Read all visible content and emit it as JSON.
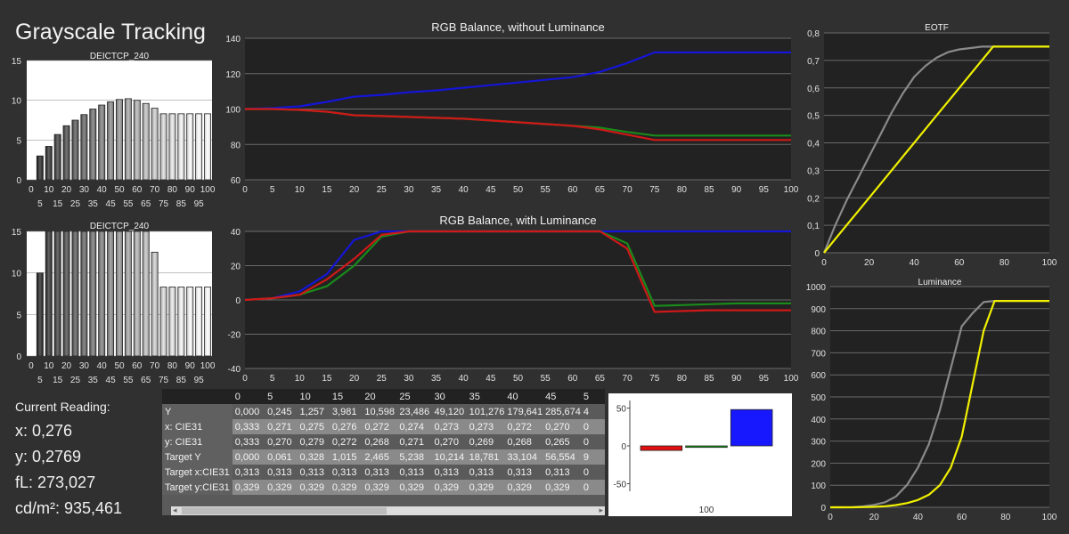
{
  "page": {
    "title": "Grayscale Tracking"
  },
  "reading": {
    "header": "Current Reading:",
    "x": "x: 0,276",
    "y": "y: 0,2769",
    "fl": "fL: 273,027",
    "cdm2": "cd/m²: 935,461"
  },
  "table": {
    "columns": [
      "0",
      "5",
      "10",
      "15",
      "20",
      "25",
      "30",
      "35",
      "40",
      "45",
      "5"
    ],
    "rows": [
      {
        "label": "Y",
        "values": [
          "0,000",
          "0,245",
          "1,257",
          "3,981",
          "10,598",
          "23,486",
          "49,120",
          "101,276",
          "179,641",
          "285,674",
          "4"
        ]
      },
      {
        "label": "x: CIE31",
        "values": [
          "0,333",
          "0,271",
          "0,275",
          "0,276",
          "0,272",
          "0,274",
          "0,273",
          "0,273",
          "0,272",
          "0,270",
          "0"
        ]
      },
      {
        "label": "y: CIE31",
        "values": [
          "0,333",
          "0,270",
          "0,279",
          "0,272",
          "0,268",
          "0,271",
          "0,270",
          "0,269",
          "0,268",
          "0,265",
          "0"
        ]
      },
      {
        "label": "Target Y",
        "values": [
          "0,000",
          "0,061",
          "0,328",
          "1,015",
          "2,465",
          "5,238",
          "10,214",
          "18,781",
          "33,104",
          "56,554",
          "9"
        ]
      },
      {
        "label": "Target x:CIE31",
        "values": [
          "0,313",
          "0,313",
          "0,313",
          "0,313",
          "0,313",
          "0,313",
          "0,313",
          "0,313",
          "0,313",
          "0,313",
          "0"
        ]
      },
      {
        "label": "Target y:CIE31",
        "values": [
          "0,329",
          "0,329",
          "0,329",
          "0,329",
          "0,329",
          "0,329",
          "0,329",
          "0,329",
          "0,329",
          "0,329",
          "0"
        ]
      }
    ]
  },
  "chart_data": [
    {
      "id": "deictcp-top",
      "type": "bar",
      "title": "DEICTCP_240",
      "categories": [
        0,
        5,
        10,
        15,
        20,
        25,
        30,
        35,
        40,
        45,
        50,
        55,
        60,
        65,
        70,
        75,
        80,
        85,
        90,
        95,
        100
      ],
      "tick_row1": [
        "0",
        "10",
        "20",
        "30",
        "40",
        "50",
        "60",
        "70",
        "80",
        "90",
        "100"
      ],
      "tick_row2": [
        "5",
        "15",
        "25",
        "35",
        "45",
        "55",
        "65",
        "75",
        "85",
        "95"
      ],
      "values": [
        0,
        3,
        4.2,
        5.7,
        6.8,
        7.5,
        8.2,
        8.9,
        9.4,
        9.8,
        10.1,
        10.2,
        10,
        9.6,
        9,
        8.3,
        8.3,
        8.3,
        8.3,
        8.3,
        8.3
      ],
      "ylim": [
        0,
        15
      ],
      "yticks": [
        0,
        5,
        10,
        15
      ]
    },
    {
      "id": "rgb-balance-without",
      "type": "line",
      "title": "RGB Balance, without Luminance",
      "x": [
        0,
        5,
        10,
        15,
        20,
        25,
        30,
        35,
        40,
        45,
        50,
        55,
        60,
        65,
        70,
        75,
        80,
        85,
        90,
        95,
        100
      ],
      "xlim": [
        0,
        100
      ],
      "ylim": [
        60,
        140
      ],
      "yticks": [
        60,
        80,
        100,
        120,
        140
      ],
      "series": [
        {
          "color": "#1515d8",
          "values": [
            100,
            100.5,
            101.5,
            104,
            107,
            108,
            109.5,
            110.5,
            112,
            113.5,
            115,
            116.5,
            118,
            121,
            126,
            132,
            132,
            132,
            132,
            132,
            132
          ]
        },
        {
          "color": "#1a8a1a",
          "values": [
            100,
            100,
            99.5,
            98.5,
            96.5,
            96,
            95.5,
            95,
            94.5,
            93.5,
            92.5,
            91.5,
            90.5,
            89.5,
            87,
            85,
            85,
            85,
            85,
            85,
            85
          ]
        },
        {
          "color": "#d01818",
          "values": [
            100,
            100,
            99.5,
            98.5,
            96.5,
            96,
            95.5,
            95,
            94.5,
            93.5,
            92.5,
            91.5,
            90.5,
            88.5,
            85.5,
            82.5,
            82.5,
            82.5,
            82.5,
            82.5,
            82.5
          ]
        }
      ]
    },
    {
      "id": "eotf",
      "type": "line",
      "title": "EOTF",
      "x": [
        0,
        5,
        10,
        15,
        20,
        25,
        30,
        35,
        40,
        45,
        50,
        55,
        60,
        65,
        70,
        75,
        80,
        85,
        90,
        95,
        100
      ],
      "xlim": [
        0,
        100
      ],
      "ylim": [
        0,
        0.8
      ],
      "yticks": [
        "0",
        "0,1",
        "0,2",
        "0,3",
        "0,4",
        "0,5",
        "0,6",
        "0,7",
        "0,8"
      ],
      "xticks": [
        0,
        20,
        40,
        60,
        80,
        100
      ],
      "series": [
        {
          "color": "#8a8a8a",
          "values": [
            0,
            0.1,
            0.19,
            0.27,
            0.35,
            0.43,
            0.51,
            0.58,
            0.64,
            0.68,
            0.71,
            0.73,
            0.74,
            0.745,
            0.75,
            0.75,
            0.75,
            0.75,
            0.75,
            0.75,
            0.75
          ]
        },
        {
          "color": "#f0f000",
          "values": [
            0,
            0.05,
            0.1,
            0.15,
            0.2,
            0.25,
            0.3,
            0.35,
            0.4,
            0.45,
            0.5,
            0.55,
            0.6,
            0.65,
            0.7,
            0.75,
            0.75,
            0.75,
            0.75,
            0.75,
            0.75
          ]
        }
      ]
    },
    {
      "id": "deictcp-bottom",
      "type": "bar",
      "title": "DEICTCP_240",
      "categories": [
        0,
        5,
        10,
        15,
        20,
        25,
        30,
        35,
        40,
        45,
        50,
        55,
        60,
        65,
        70,
        75,
        80,
        85,
        90,
        95,
        100
      ],
      "tick_row1": [
        "0",
        "10",
        "20",
        "30",
        "40",
        "50",
        "60",
        "70",
        "80",
        "90",
        "100"
      ],
      "tick_row2": [
        "5",
        "15",
        "25",
        "35",
        "45",
        "55",
        "65",
        "75",
        "85",
        "95"
      ],
      "values": [
        0,
        10,
        15,
        15,
        15,
        15,
        15,
        15,
        15,
        15,
        15,
        15,
        15,
        15,
        12.5,
        8.3,
        8.3,
        8.3,
        8.3,
        8.3,
        8.3
      ],
      "ylim": [
        0,
        15
      ],
      "yticks": [
        0,
        5,
        10,
        15
      ]
    },
    {
      "id": "rgb-balance-with",
      "type": "line",
      "title": "RGB Balance, with Luminance",
      "x": [
        0,
        5,
        10,
        15,
        20,
        25,
        30,
        35,
        40,
        45,
        50,
        55,
        60,
        65,
        70,
        75,
        80,
        85,
        90,
        95,
        100
      ],
      "xlim": [
        0,
        100
      ],
      "ylim": [
        -40,
        40
      ],
      "yticks": [
        -40,
        -20,
        0,
        20,
        40
      ],
      "series": [
        {
          "color": "#1515d8",
          "values": [
            0,
            1,
            5,
            15,
            35,
            40,
            40,
            40,
            40,
            40,
            40,
            40,
            40,
            40,
            40,
            40,
            40,
            40,
            40,
            40,
            40
          ]
        },
        {
          "color": "#1a8a1a",
          "values": [
            0,
            1,
            3,
            8,
            20,
            37,
            40,
            40,
            40,
            40,
            40,
            40,
            40,
            40,
            33,
            -3.5,
            -3,
            -2.5,
            -2,
            -2,
            -2
          ]
        },
        {
          "color": "#d01818",
          "values": [
            0,
            1,
            3,
            12,
            24,
            38,
            40,
            40,
            40,
            40,
            40,
            40,
            40,
            40,
            30,
            -7,
            -6.5,
            -6,
            -6,
            -6,
            -6
          ]
        }
      ]
    },
    {
      "id": "luminance",
      "type": "line",
      "title": "Luminance",
      "x": [
        0,
        5,
        10,
        15,
        20,
        25,
        30,
        35,
        40,
        45,
        50,
        55,
        60,
        65,
        70,
        75,
        80,
        85,
        90,
        95,
        100
      ],
      "xlim": [
        0,
        100
      ],
      "ylim": [
        0,
        1000
      ],
      "yticks": [
        0,
        100,
        200,
        300,
        400,
        500,
        600,
        700,
        800,
        900,
        1000
      ],
      "xticks": [
        0,
        20,
        40,
        60,
        80,
        100
      ],
      "series": [
        {
          "color": "#8a8a8a",
          "values": [
            0,
            0,
            1,
            4,
            11,
            23,
            49,
            101,
            180,
            286,
            440,
            630,
            820,
            880,
            930,
            935,
            935,
            935,
            935,
            935,
            935
          ]
        },
        {
          "color": "#f0f000",
          "values": [
            0,
            0,
            0,
            1,
            2,
            5,
            10,
            19,
            33,
            57,
            100,
            180,
            320,
            560,
            800,
            935,
            935,
            935,
            935,
            935,
            935
          ]
        }
      ]
    },
    {
      "id": "rgb-balance-current",
      "type": "bar",
      "categories": [
        "100"
      ],
      "ylim": [
        -60,
        60
      ],
      "yticks": [
        -50,
        0,
        50
      ],
      "series": [
        {
          "color": "#e01010",
          "values": [
            -6
          ]
        },
        {
          "color": "#10a010",
          "values": [
            -2
          ]
        },
        {
          "color": "#1818ff",
          "values": [
            48
          ]
        }
      ]
    }
  ]
}
